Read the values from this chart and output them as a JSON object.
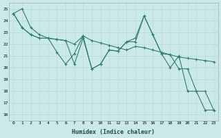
{
  "xlabel": "Humidex (Indice chaleur)",
  "background_color": "#cce9e9",
  "grid_color": "#bbdddd",
  "line_color": "#2e7d6e",
  "xlim": [
    -0.5,
    23.5
  ],
  "ylim": [
    15.5,
    25.5
  ],
  "yticks": [
    16,
    17,
    18,
    19,
    20,
    21,
    22,
    23,
    24,
    25
  ],
  "xticks": [
    0,
    1,
    2,
    3,
    4,
    5,
    6,
    7,
    8,
    9,
    10,
    11,
    12,
    13,
    14,
    15,
    16,
    17,
    18,
    19,
    20,
    21,
    22,
    23
  ],
  "series": [
    {
      "x": [
        0,
        1,
        2,
        3,
        4,
        5,
        6,
        7,
        8,
        9,
        10,
        11,
        12,
        13,
        14,
        15,
        16,
        17,
        18,
        19,
        20,
        21,
        22,
        23
      ],
      "y": [
        24.6,
        25.0,
        23.4,
        22.8,
        22.5,
        21.3,
        20.3,
        21.2,
        22.7,
        19.9,
        20.3,
        21.5,
        21.4,
        22.2,
        22.5,
        24.4,
        22.8,
        21.2,
        21.1,
        19.9,
        19.9,
        18.0,
        18.0,
        16.4
      ]
    },
    {
      "x": [
        0,
        1,
        2,
        3,
        4,
        5,
        6,
        7,
        8,
        9,
        10,
        11,
        12,
        13,
        14,
        15,
        16,
        17,
        18,
        19,
        20,
        21,
        22,
        23
      ],
      "y": [
        24.6,
        23.4,
        22.8,
        22.5,
        22.5,
        22.4,
        22.3,
        22.0,
        22.7,
        22.3,
        22.1,
        21.9,
        21.7,
        21.5,
        21.8,
        21.7,
        21.5,
        21.3,
        21.1,
        20.9,
        20.8,
        20.7,
        20.6,
        20.5
      ]
    },
    {
      "x": [
        0,
        1,
        2,
        3,
        4,
        5,
        6,
        7,
        8,
        9,
        10,
        11,
        12,
        13,
        14,
        15,
        16,
        17,
        18,
        19,
        20,
        21,
        22,
        23
      ],
      "y": [
        24.6,
        23.4,
        22.8,
        22.5,
        22.5,
        22.4,
        22.3,
        20.3,
        22.5,
        19.9,
        20.3,
        21.5,
        21.4,
        22.2,
        22.2,
        24.4,
        22.8,
        21.2,
        20.0,
        21.0,
        18.0,
        18.0,
        16.4,
        16.4
      ]
    }
  ]
}
